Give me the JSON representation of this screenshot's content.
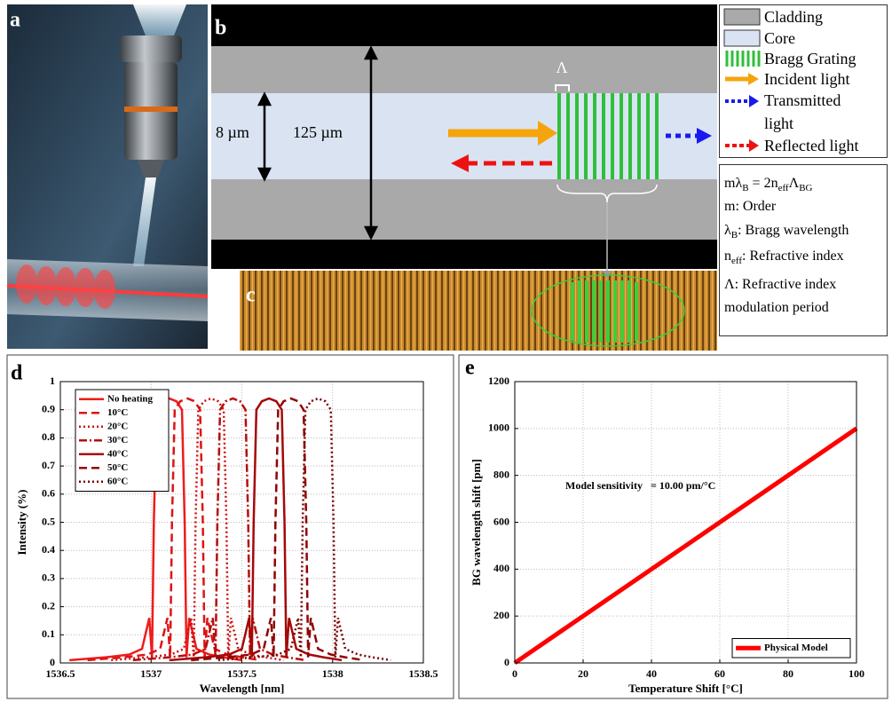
{
  "panel_labels": [
    "a",
    "b",
    "c",
    "d",
    "e"
  ],
  "diagram": {
    "core_label": "8 µm",
    "cladding_label": "125 µm",
    "period_label": "Λ"
  },
  "legend": [
    "Cladding",
    "Core",
    "Bragg Grating",
    "Incident light",
    "Transmitted light",
    "Reflected light"
  ],
  "definitions": {
    "equation": [
      "mλ",
      "B",
      " = 2n",
      "eff",
      "Λ",
      "BG"
    ],
    "order": "m: Order",
    "bragg": [
      "λ",
      "B",
      ": Bragg wavelength"
    ],
    "index": [
      "n",
      "eff",
      ": Refractive index"
    ],
    "period": "Λ: Refractive index modulation period"
  },
  "chart_data": [
    {
      "type": "line",
      "x_label": "Wavelength [nm]",
      "y_label": "Intensity (%)",
      "xlim": [
        1536.5,
        1538.5
      ],
      "ylim": [
        0,
        1
      ],
      "xticks": [
        1536.5,
        1537,
        1537.5,
        1538,
        1538.5
      ],
      "yticks": [
        0,
        0.1,
        0.2,
        0.3,
        0.4,
        0.5,
        0.6,
        0.7,
        0.8,
        0.9,
        1
      ],
      "grid": true,
      "legend": "upper left",
      "series": [
        {
          "name": "No heating",
          "color": "#ee1c1c",
          "line_style": "solid",
          "x": [
            1536.55,
            1536.75,
            1536.88,
            1536.95,
            1536.99,
            1537.005,
            1537.015,
            1537.03,
            1537.06,
            1537.1,
            1537.14,
            1537.17,
            1537.185,
            1537.195,
            1537.21,
            1537.25,
            1537.32,
            1537.4,
            1537.5
          ],
          "values": [
            0.01,
            0.02,
            0.03,
            0.05,
            0.16,
            0.02,
            0.5,
            0.9,
            0.93,
            0.94,
            0.93,
            0.9,
            0.5,
            0.02,
            0.16,
            0.05,
            0.03,
            0.02,
            0.01
          ]
        },
        {
          "name": "10°C",
          "color": "#dd1414",
          "line_style": "dashed",
          "x": [
            1536.65,
            1536.85,
            1536.98,
            1537.05,
            1537.09,
            1537.105,
            1537.115,
            1537.13,
            1537.16,
            1537.2,
            1537.24,
            1537.27,
            1537.285,
            1537.295,
            1537.31,
            1537.35,
            1537.42,
            1537.5,
            1537.6
          ],
          "values": [
            0.01,
            0.02,
            0.03,
            0.05,
            0.16,
            0.02,
            0.5,
            0.9,
            0.93,
            0.94,
            0.93,
            0.9,
            0.5,
            0.02,
            0.16,
            0.05,
            0.03,
            0.02,
            0.01
          ]
        },
        {
          "name": "20°C",
          "color": "#cc1010",
          "line_style": "dotted",
          "x": [
            1536.78,
            1536.98,
            1537.11,
            1537.18,
            1537.22,
            1537.235,
            1537.245,
            1537.26,
            1537.29,
            1537.33,
            1537.37,
            1537.4,
            1537.415,
            1537.425,
            1537.44,
            1537.48,
            1537.55,
            1537.63,
            1537.73
          ],
          "values": [
            0.01,
            0.02,
            0.03,
            0.05,
            0.16,
            0.02,
            0.5,
            0.9,
            0.93,
            0.94,
            0.93,
            0.9,
            0.5,
            0.02,
            0.16,
            0.05,
            0.03,
            0.02,
            0.01
          ]
        },
        {
          "name": "30°C",
          "color": "#b80c0c",
          "line_style": "dashdot",
          "x": [
            1536.9,
            1537.1,
            1537.23,
            1537.3,
            1537.34,
            1537.355,
            1537.365,
            1537.38,
            1537.41,
            1537.45,
            1537.49,
            1537.52,
            1537.535,
            1537.545,
            1537.56,
            1537.6,
            1537.67,
            1537.75,
            1537.85
          ],
          "values": [
            0.01,
            0.02,
            0.03,
            0.05,
            0.16,
            0.02,
            0.5,
            0.9,
            0.93,
            0.94,
            0.93,
            0.9,
            0.5,
            0.02,
            0.16,
            0.05,
            0.03,
            0.02,
            0.01
          ]
        },
        {
          "name": "40°C",
          "color": "#a50808",
          "line_style": "solid",
          "x": [
            1537.1,
            1537.3,
            1537.43,
            1537.5,
            1537.54,
            1537.555,
            1537.565,
            1537.58,
            1537.61,
            1537.65,
            1537.69,
            1537.72,
            1537.735,
            1537.745,
            1537.76,
            1537.8,
            1537.87,
            1537.95,
            1538.05
          ],
          "values": [
            0.01,
            0.02,
            0.03,
            0.05,
            0.16,
            0.02,
            0.5,
            0.9,
            0.93,
            0.94,
            0.93,
            0.9,
            0.5,
            0.02,
            0.16,
            0.05,
            0.03,
            0.02,
            0.01
          ]
        },
        {
          "name": "50°C",
          "color": "#900404",
          "line_style": "dashed",
          "x": [
            1537.22,
            1537.42,
            1537.55,
            1537.62,
            1537.66,
            1537.675,
            1537.685,
            1537.7,
            1537.73,
            1537.77,
            1537.81,
            1537.84,
            1537.855,
            1537.865,
            1537.88,
            1537.92,
            1537.99,
            1538.07,
            1538.17
          ],
          "values": [
            0.01,
            0.02,
            0.03,
            0.05,
            0.16,
            0.02,
            0.5,
            0.9,
            0.93,
            0.94,
            0.93,
            0.9,
            0.5,
            0.02,
            0.16,
            0.05,
            0.03,
            0.02,
            0.01
          ]
        },
        {
          "name": "60°C",
          "color": "#7a0000",
          "line_style": "dotted",
          "x": [
            1537.37,
            1537.57,
            1537.7,
            1537.77,
            1537.81,
            1537.825,
            1537.835,
            1537.85,
            1537.88,
            1537.92,
            1537.96,
            1537.99,
            1538.005,
            1538.015,
            1538.03,
            1538.07,
            1538.14,
            1538.22,
            1538.32
          ],
          "values": [
            0.01,
            0.02,
            0.03,
            0.05,
            0.16,
            0.02,
            0.5,
            0.9,
            0.93,
            0.94,
            0.93,
            0.9,
            0.5,
            0.02,
            0.16,
            0.05,
            0.03,
            0.02,
            0.01
          ]
        }
      ]
    },
    {
      "type": "line",
      "x_label": "Temperature Shift [°C]",
      "y_label": "BG wavelength shift [pm]",
      "annotation": "Model sensitivity   = 10.00 pm/°C",
      "xlim": [
        0,
        100
      ],
      "ylim": [
        0,
        1200
      ],
      "xticks": [
        0,
        20,
        40,
        60,
        80,
        100
      ],
      "yticks": [
        0,
        200,
        400,
        600,
        800,
        1000,
        1200
      ],
      "grid": true,
      "legend": "lower right",
      "series": [
        {
          "name": "Physical Model",
          "color": "#ff0000",
          "line_style": "solid",
          "line_width": 5,
          "x": [
            0,
            100
          ],
          "values": [
            0,
            1000
          ]
        }
      ]
    }
  ]
}
